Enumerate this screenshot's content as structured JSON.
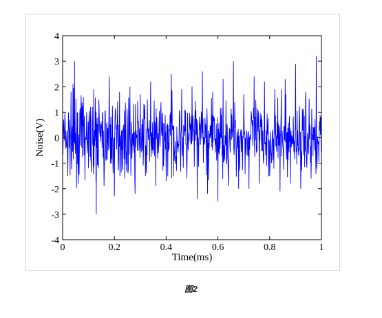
{
  "caption": "图2",
  "colors": {
    "series": "#0000ff",
    "axes": "#000000",
    "background": "#ffffff",
    "frame": "#d4d4d4"
  },
  "chart_data": {
    "type": "line",
    "title": "",
    "xlabel": "Time(ms)",
    "ylabel": "Noise(V)",
    "xlim": [
      0,
      1
    ],
    "ylim": [
      -4,
      4
    ],
    "xticks": [
      0,
      0.2,
      0.4,
      0.6,
      0.8,
      1
    ],
    "xtick_labels": [
      "0",
      "0.2",
      "0.4",
      "0.6",
      "0.8",
      "1"
    ],
    "yticks": [
      -4,
      -3,
      -2,
      -1,
      0,
      1,
      2,
      3,
      4
    ],
    "ytick_labels": [
      "-4",
      "-3",
      "-2",
      "-1",
      "0",
      "1",
      "2",
      "3",
      "4"
    ],
    "grid": false,
    "legend": "none",
    "series": [
      {
        "x": [
          0,
          0.02,
          0.04,
          0.046,
          0.06,
          0.08,
          0.1,
          0.12,
          0.13,
          0.14,
          0.16,
          0.18,
          0.2,
          0.22,
          0.24,
          0.26,
          0.28,
          0.3,
          0.32,
          0.34,
          0.36,
          0.38,
          0.4,
          0.42,
          0.44,
          0.46,
          0.48,
          0.5,
          0.52,
          0.54,
          0.56,
          0.58,
          0.6,
          0.62,
          0.64,
          0.66,
          0.68,
          0.7,
          0.72,
          0.74,
          0.76,
          0.78,
          0.8,
          0.82,
          0.84,
          0.86,
          0.88,
          0.9,
          0.92,
          0.94,
          0.96,
          0.98,
          1
        ],
        "y": [
          0.2,
          -1.5,
          2.1,
          3.0,
          -1.8,
          1.6,
          -1.2,
          1.9,
          -3.0,
          1.5,
          -1.9,
          2.4,
          -2.3,
          1.8,
          -1.6,
          2.0,
          -2.2,
          1.7,
          -1.5,
          2.2,
          -1.9,
          1.4,
          -1.7,
          2.5,
          -1.3,
          1.9,
          -1.6,
          2.0,
          -2.4,
          2.6,
          -2.2,
          1.8,
          -2.5,
          2.3,
          -1.9,
          3.0,
          -2.0,
          1.7,
          -2.0,
          2.4,
          -1.8,
          2.2,
          -1.5,
          1.9,
          -2.1,
          2.3,
          -1.8,
          2.9,
          -2.0,
          1.8,
          -1.6,
          3.2,
          -0.6
        ]
      }
    ]
  }
}
